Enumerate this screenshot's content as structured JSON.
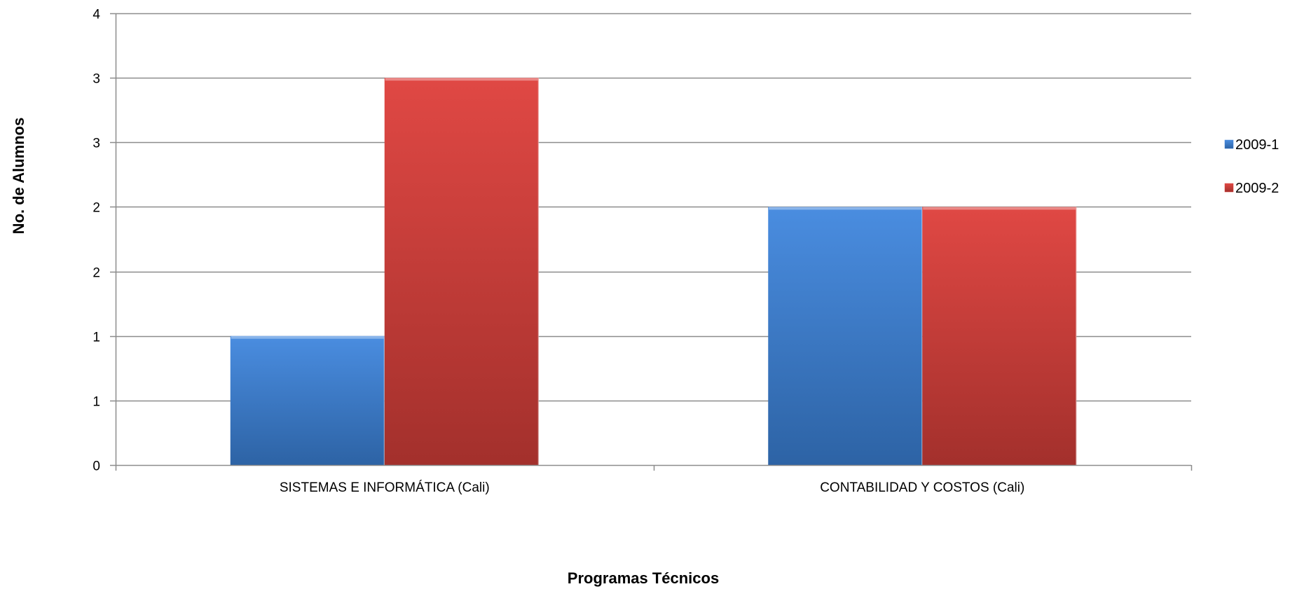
{
  "chart_data": {
    "type": "bar",
    "categories": [
      "SISTEMAS E INFORMÁTICA (Cali)",
      "CONTABILIDAD Y COSTOS (Cali)"
    ],
    "series": [
      {
        "name": "2009-1",
        "values": [
          1,
          2
        ],
        "color": "#3b7fd4"
      },
      {
        "name": "2009-2",
        "values": [
          3,
          2
        ],
        "color": "#d63c38"
      }
    ],
    "title": "",
    "xlabel": "Programas Técnicos",
    "ylabel": "No. de Alumnos",
    "ylim": [
      0,
      3.5
    ],
    "y_ticks": [
      {
        "value": 0,
        "label": "0"
      },
      {
        "value": 0.5,
        "label": "1"
      },
      {
        "value": 1,
        "label": "1"
      },
      {
        "value": 1.5,
        "label": "2"
      },
      {
        "value": 2,
        "label": "2"
      },
      {
        "value": 2.5,
        "label": "3"
      },
      {
        "value": 3,
        "label": "3"
      },
      {
        "value": 3.5,
        "label": "4"
      }
    ],
    "grid": true,
    "legend_position": "right"
  }
}
